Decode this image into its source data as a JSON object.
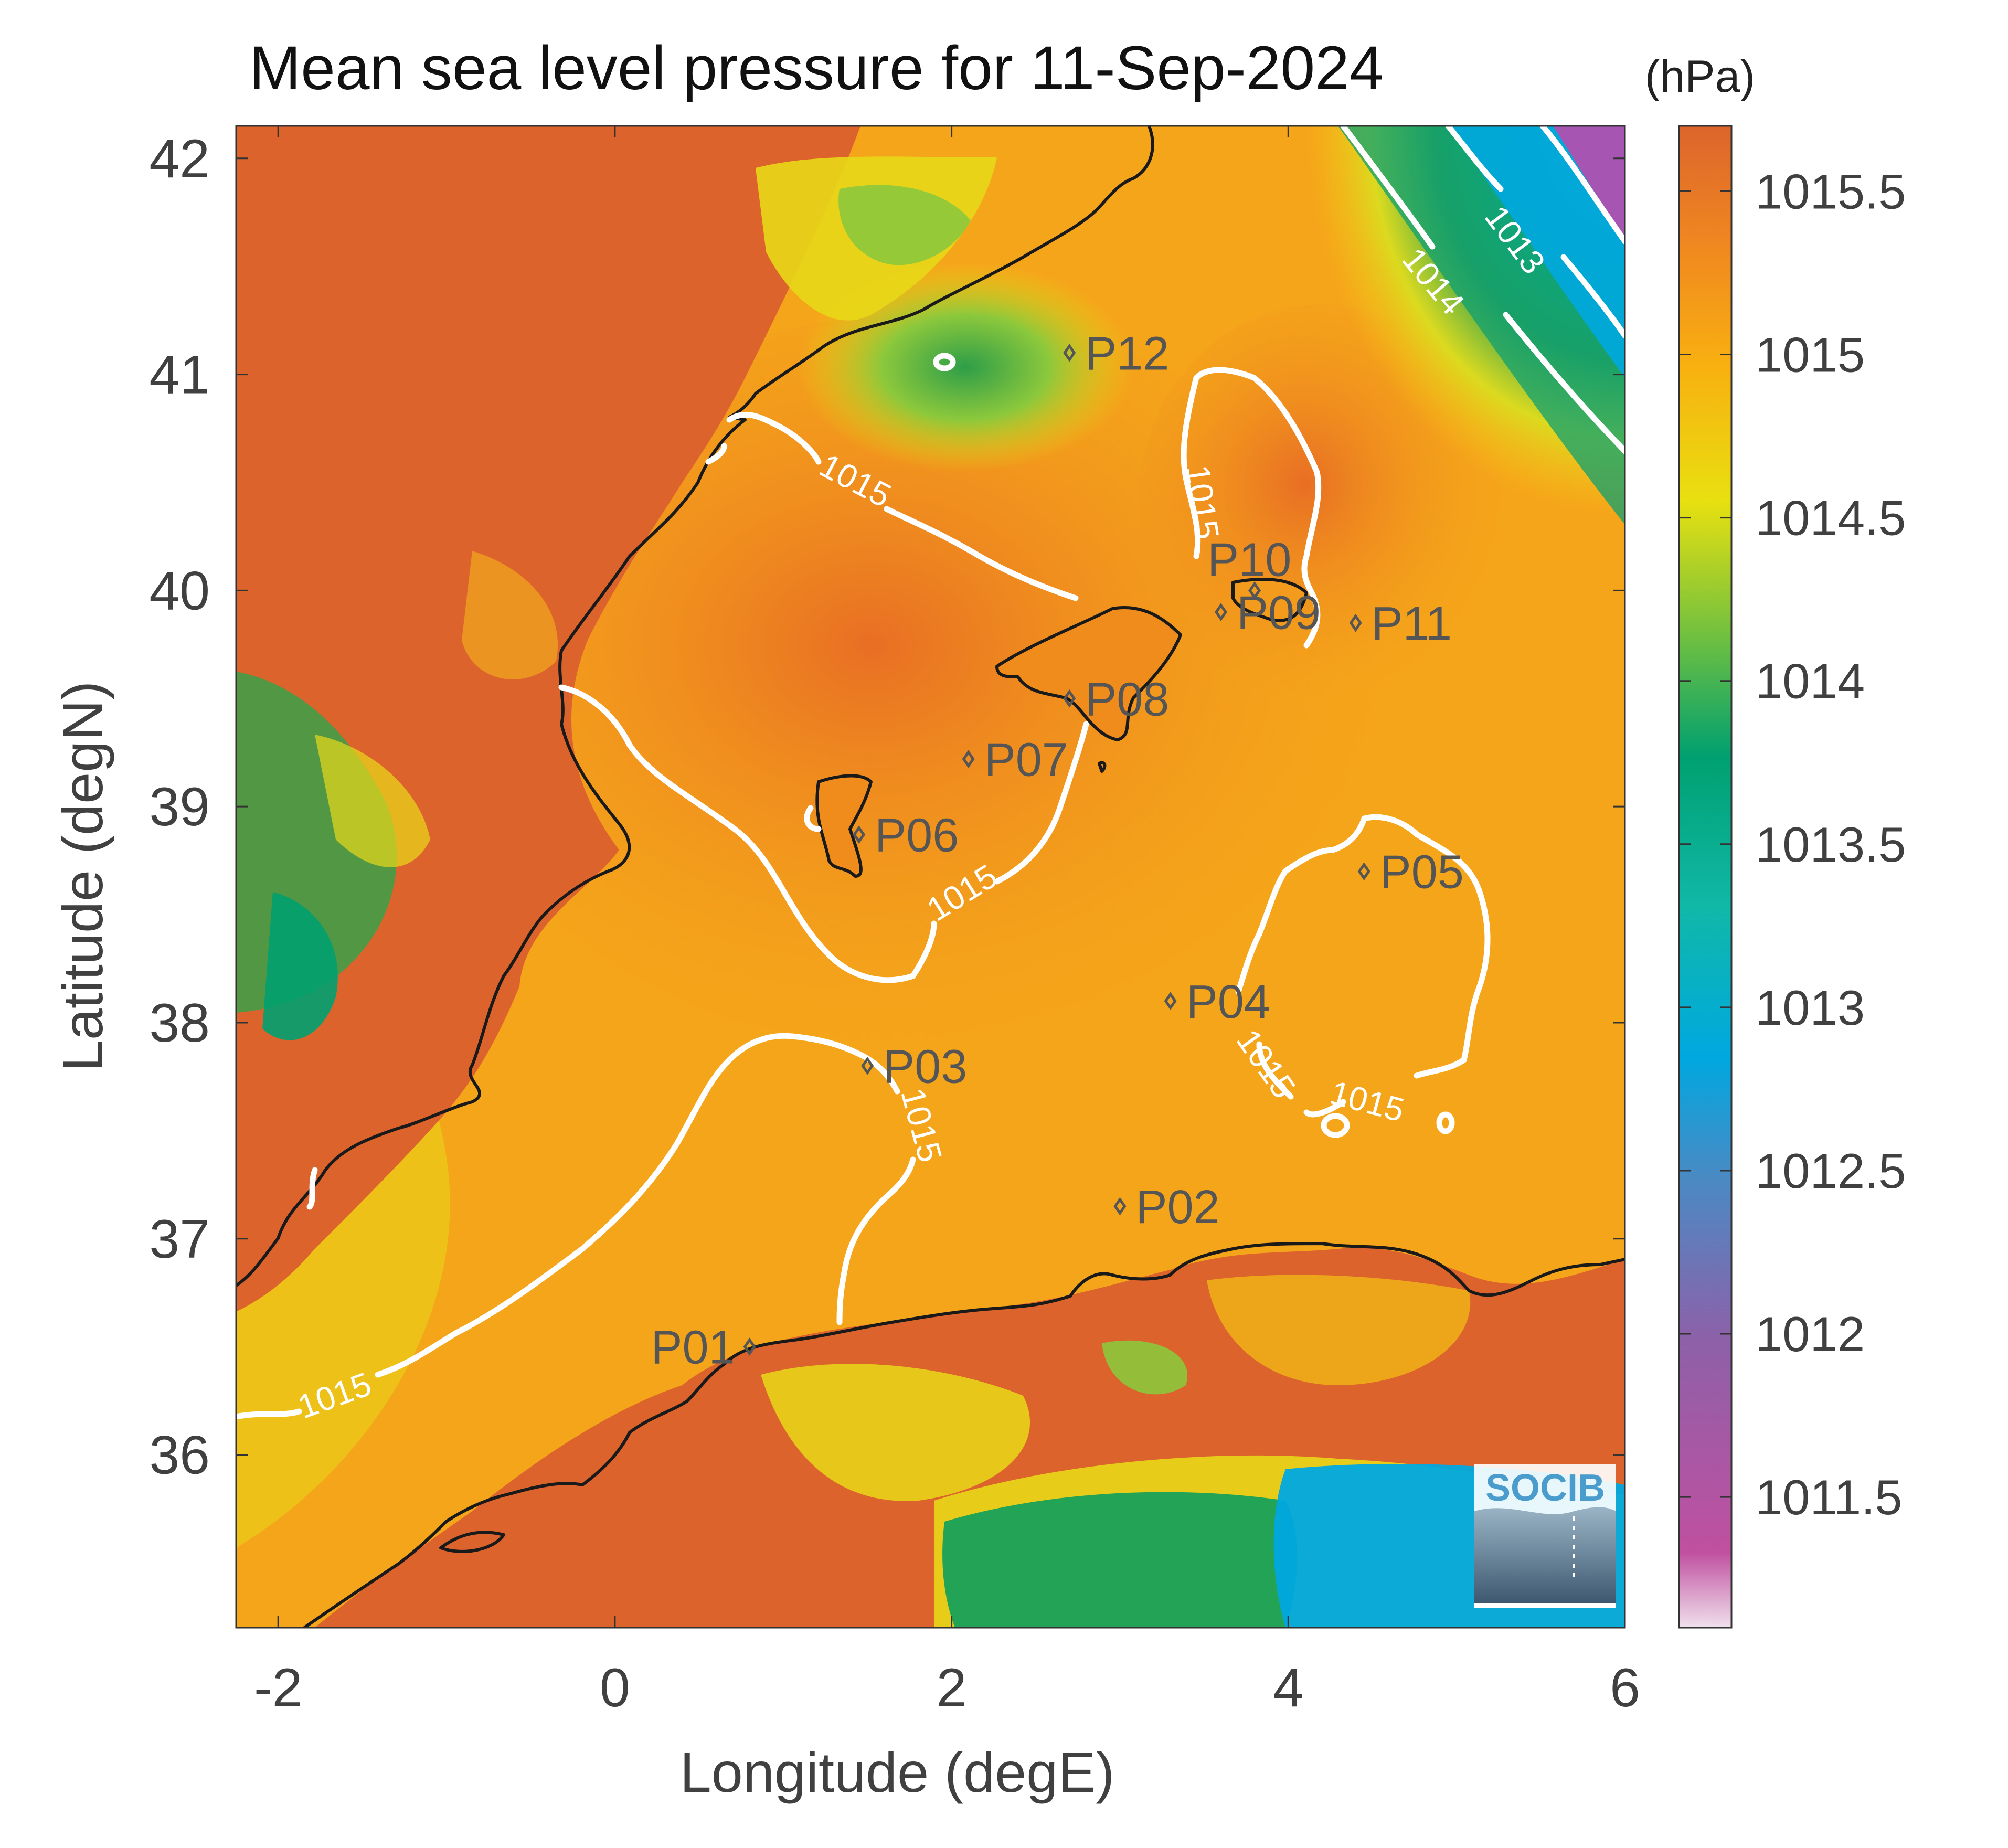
{
  "title": "Mean sea level pressure for 11-Sep-2024",
  "units": "(hPa)",
  "xlabel": "Longitude (degE)",
  "ylabel": "Latitude (degN)",
  "logo_text": "SOCIB",
  "colormap": [
    "#e8c8e0",
    "#c050a0",
    "#8e60a8",
    "#6a78b8",
    "#3a90c8",
    "#00a8e0",
    "#10b8b0",
    "#00a070",
    "#3aa048",
    "#8cc83c",
    "#e8e010",
    "#f8b814",
    "#f08c1c",
    "#dc642c"
  ],
  "chart_data": {
    "type": "heatmap",
    "title": "Mean sea level pressure for 11-Sep-2024",
    "xlabel": "Longitude (degE)",
    "ylabel": "Latitude (degN)",
    "xlim": [
      -2.25,
      6
    ],
    "ylim": [
      35.2,
      42.15
    ],
    "x_ticks": [
      -2,
      0,
      2,
      4,
      6
    ],
    "x_tick_labels": [
      "-2",
      "0",
      "2",
      "4",
      "6"
    ],
    "y_ticks": [
      36,
      37,
      38,
      39,
      40,
      41,
      42
    ],
    "y_tick_labels": [
      "36",
      "37",
      "38",
      "39",
      "40",
      "41",
      "42"
    ],
    "colorbar": {
      "label": "(hPa)",
      "range": [
        1011.1,
        1015.7
      ],
      "ticks": [
        1011.5,
        1012,
        1012.5,
        1013,
        1013.5,
        1014,
        1014.5,
        1015,
        1015.5
      ],
      "tick_labels": [
        "1011.5",
        "1012",
        "1012.5",
        "1013",
        "1013.5",
        "1014",
        "1014.5",
        "1015",
        "1015.5"
      ]
    },
    "contours": [
      {
        "level": 1013,
        "label": "1013"
      },
      {
        "level": 1014,
        "label": "1014"
      },
      {
        "level": 1015,
        "label": "1015"
      }
    ],
    "stations": [
      {
        "name": "P01",
        "lon": 0.8,
        "lat": 36.5
      },
      {
        "name": "P02",
        "lon": 3.0,
        "lat": 37.15
      },
      {
        "name": "P03",
        "lon": 1.5,
        "lat": 37.8
      },
      {
        "name": "P04",
        "lon": 3.3,
        "lat": 38.1
      },
      {
        "name": "P05",
        "lon": 4.45,
        "lat": 38.7
      },
      {
        "name": "P06",
        "lon": 1.45,
        "lat": 38.87
      },
      {
        "name": "P07",
        "lon": 2.1,
        "lat": 39.22
      },
      {
        "name": "P08",
        "lon": 2.7,
        "lat": 39.5
      },
      {
        "name": "P09",
        "lon": 3.6,
        "lat": 39.9
      },
      {
        "name": "P10",
        "lon": 3.8,
        "lat": 40.0
      },
      {
        "name": "P11",
        "lon": 4.4,
        "lat": 39.85
      },
      {
        "name": "P12",
        "lon": 2.7,
        "lat": 41.1
      }
    ]
  }
}
